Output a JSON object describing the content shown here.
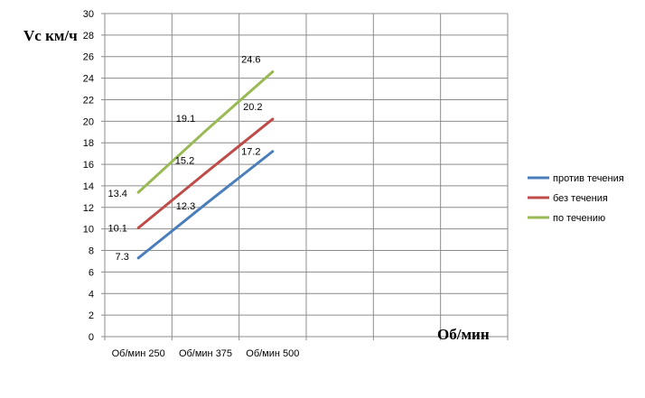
{
  "chart_data": {
    "type": "line",
    "categories": [
      "Об/мин 250",
      "Об/мин 375",
      "Об/мин 500"
    ],
    "ylabel": "Vс км/ч",
    "xlabel": "Об/мин",
    "ylim": [
      0,
      30
    ],
    "ystep": 2,
    "x_slots": 6,
    "grid": true,
    "legend_position": "right",
    "series": [
      {
        "name": "против течения",
        "color": "#4a7ebb",
        "values": [
          7.3,
          12.3,
          17.2
        ],
        "labels": [
          "7.3",
          "12.3",
          "17.2"
        ]
      },
      {
        "name": "без течения",
        "color": "#be4b48",
        "values": [
          10.1,
          15.2,
          20.2
        ],
        "labels": [
          "10.1",
          "15.2",
          "20.2"
        ]
      },
      {
        "name": "по течению",
        "color": "#98b954",
        "values": [
          13.4,
          19.1,
          24.6
        ],
        "labels": [
          "13.4",
          "19.1",
          "24.6"
        ]
      }
    ]
  }
}
